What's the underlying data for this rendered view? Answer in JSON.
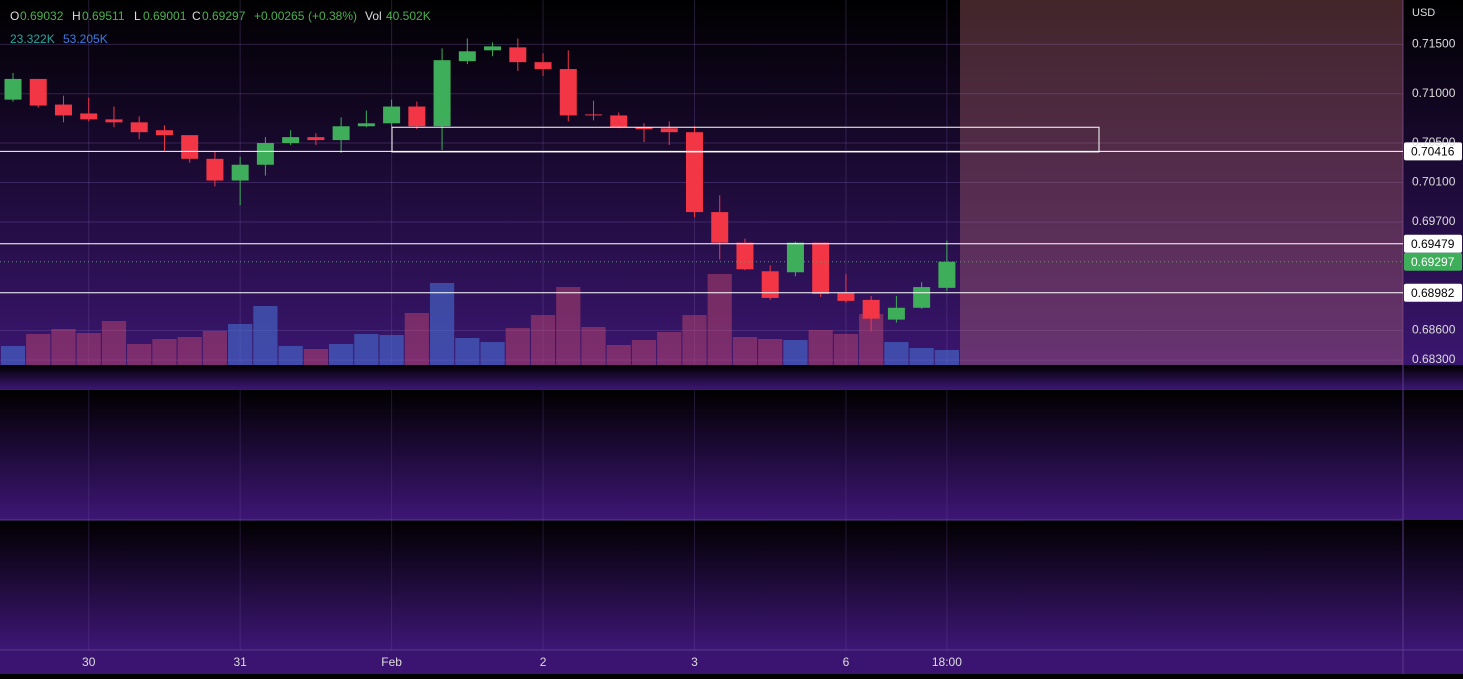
{
  "chart_data": {
    "type": "candlestick",
    "currency": "USD",
    "header": {
      "labels": [
        "O",
        "H",
        "L",
        "C",
        "Vol"
      ],
      "change": "+0.00265",
      "change_pct": "(+0.38%)",
      "volume": "40.502K",
      "vol_ma": [
        "23.322K",
        "53.205K"
      ]
    },
    "categories": [
      null,
      null,
      null,
      "30",
      null,
      null,
      null,
      null,
      null,
      "31",
      null,
      null,
      null,
      null,
      null,
      "Feb",
      null,
      null,
      null,
      null,
      null,
      "2",
      null,
      null,
      null,
      null,
      null,
      "3",
      null,
      null,
      null,
      null,
      null,
      "6",
      null,
      null,
      null,
      "18:00"
    ],
    "ohlc": [
      [
        0.7094,
        0.7121,
        0.7092,
        0.7115
      ],
      [
        0.7115,
        0.7115,
        0.7086,
        0.7088
      ],
      [
        0.7089,
        0.7098,
        0.7071,
        0.7078
      ],
      [
        0.708,
        0.7096,
        0.7072,
        0.7074
      ],
      [
        0.7074,
        0.7087,
        0.7066,
        0.7071
      ],
      [
        0.7071,
        0.7077,
        0.7054,
        0.7061
      ],
      [
        0.7063,
        0.7068,
        0.7042,
        0.7058
      ],
      [
        0.7058,
        0.7058,
        0.703,
        0.7034
      ],
      [
        0.7034,
        0.7041,
        0.7006,
        0.7012
      ],
      [
        0.7012,
        0.7036,
        0.6987,
        0.7028
      ],
      [
        0.7028,
        0.7056,
        0.7017,
        0.705
      ],
      [
        0.705,
        0.7063,
        0.7048,
        0.7056
      ],
      [
        0.7056,
        0.706,
        0.7048,
        0.7053
      ],
      [
        0.7053,
        0.7076,
        0.704,
        0.7067
      ],
      [
        0.7067,
        0.7083,
        0.7066,
        0.707
      ],
      [
        0.707,
        0.7094,
        0.7066,
        0.7087
      ],
      [
        0.7087,
        0.7092,
        0.7064,
        0.7067
      ],
      [
        0.7067,
        0.7146,
        0.7043,
        0.7134
      ],
      [
        0.7133,
        0.7156,
        0.713,
        0.7143
      ],
      [
        0.7144,
        0.7152,
        0.7138,
        0.7148
      ],
      [
        0.7147,
        0.7156,
        0.7123,
        0.7132
      ],
      [
        0.7132,
        0.7141,
        0.7118,
        0.7125
      ],
      [
        0.7125,
        0.7144,
        0.7072,
        0.7078
      ],
      [
        0.7079,
        0.7093,
        0.7073,
        0.7078
      ],
      [
        0.7078,
        0.7081,
        0.7065,
        0.7066
      ],
      [
        0.7066,
        0.707,
        0.7051,
        0.7064
      ],
      [
        0.7065,
        0.7072,
        0.7048,
        0.7061
      ],
      [
        0.7061,
        0.7067,
        0.6975,
        0.698
      ],
      [
        0.698,
        0.6997,
        0.6932,
        0.6949
      ],
      [
        0.6949,
        0.6953,
        0.6921,
        0.6922
      ],
      [
        0.692,
        0.6926,
        0.6891,
        0.6893
      ],
      [
        0.6919,
        0.695,
        0.6915,
        0.6949
      ],
      [
        0.6949,
        0.6949,
        0.6894,
        0.6897
      ],
      [
        0.6898,
        0.6917,
        0.6888,
        0.689
      ],
      [
        0.6891,
        0.6895,
        0.6859,
        0.6872
      ],
      [
        0.6871,
        0.6895,
        0.6868,
        0.6883
      ],
      [
        0.6883,
        0.6909,
        0.6882,
        0.6904
      ],
      [
        0.69032,
        0.69511,
        0.69001,
        0.69297
      ]
    ],
    "volumes": [
      51.3,
      83.7,
      97.2,
      86.4,
      118.8,
      56.7,
      70.2,
      75.6,
      91.8,
      110.7,
      159.3,
      51.3,
      43.2,
      56.7,
      83.7,
      81,
      140.4,
      221.4,
      72.9,
      62.1,
      99.9,
      135,
      210.6,
      102.6,
      54,
      67.5,
      89.1,
      135,
      245.7,
      75.6,
      70.2,
      67.5,
      94.5,
      83.7,
      137.7,
      62.1,
      45.9,
      40.502
    ],
    "up_color": "#3fae5a",
    "down_color": "#f23645",
    "ylim": [
      0.6825,
      0.7195
    ],
    "yticks": [
      {
        "value": 0.715,
        "label": "0.71500"
      },
      {
        "value": 0.71,
        "label": "0.71000"
      },
      {
        "value": 0.705,
        "label": "0.70500"
      },
      {
        "value": 0.701,
        "label": "0.70100"
      },
      {
        "value": 0.697,
        "label": "0.69700"
      },
      {
        "value": 0.686,
        "label": "0.68600"
      },
      {
        "value": 0.683,
        "label": "0.68300"
      }
    ],
    "levels": [
      0.70416,
      0.69479,
      0.68982
    ],
    "zone": {
      "top": 0.7066,
      "bottom": 0.7041
    },
    "grid": true
  }
}
